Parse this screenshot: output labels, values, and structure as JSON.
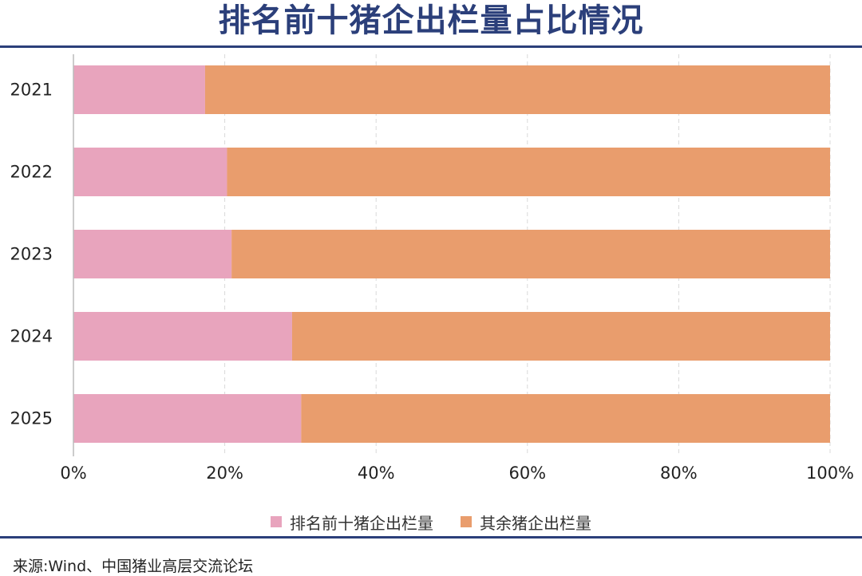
{
  "chart_data": {
    "type": "bar",
    "orientation": "horizontal",
    "stacked": true,
    "title": "排名前十猪企出栏量占比情况",
    "categories": [
      "2021",
      "2022",
      "2023",
      "2024",
      "2025"
    ],
    "series": [
      {
        "name": "排名前十猪企出栏量",
        "color": "#e8a4bd",
        "values": [
          17.4,
          20.3,
          20.9,
          28.9,
          30.1
        ]
      },
      {
        "name": "其余猪企出栏量",
        "color": "#e99d6d",
        "values": [
          82.6,
          79.7,
          79.1,
          71.1,
          69.9
        ]
      }
    ],
    "xlim": [
      0,
      100
    ],
    "xticks": [
      "0%",
      "20%",
      "40%",
      "60%",
      "80%",
      "100%"
    ],
    "grid": "vertical-dashed",
    "legend_position": "bottom"
  },
  "source": "来源:Wind、中国猪业高层交流论坛"
}
